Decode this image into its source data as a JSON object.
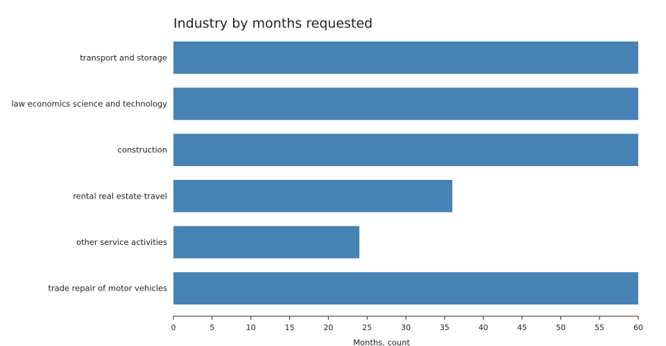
{
  "chart_data": {
    "type": "bar",
    "orientation": "horizontal",
    "title": "Industry by months requested",
    "xlabel": "Months, count",
    "ylabel": "",
    "categories": [
      "transport and storage",
      "law economics science and technology",
      "construction",
      "rental real estate travel",
      "other service activities",
      "trade repair of motor vehicles"
    ],
    "values": [
      60,
      60,
      60,
      36,
      24,
      60
    ],
    "xlim": [
      0,
      60
    ],
    "xticks": [
      0,
      5,
      10,
      15,
      20,
      25,
      30,
      35,
      40,
      45,
      50,
      55,
      60
    ],
    "grid": false,
    "bar_color": "#4682b4"
  }
}
